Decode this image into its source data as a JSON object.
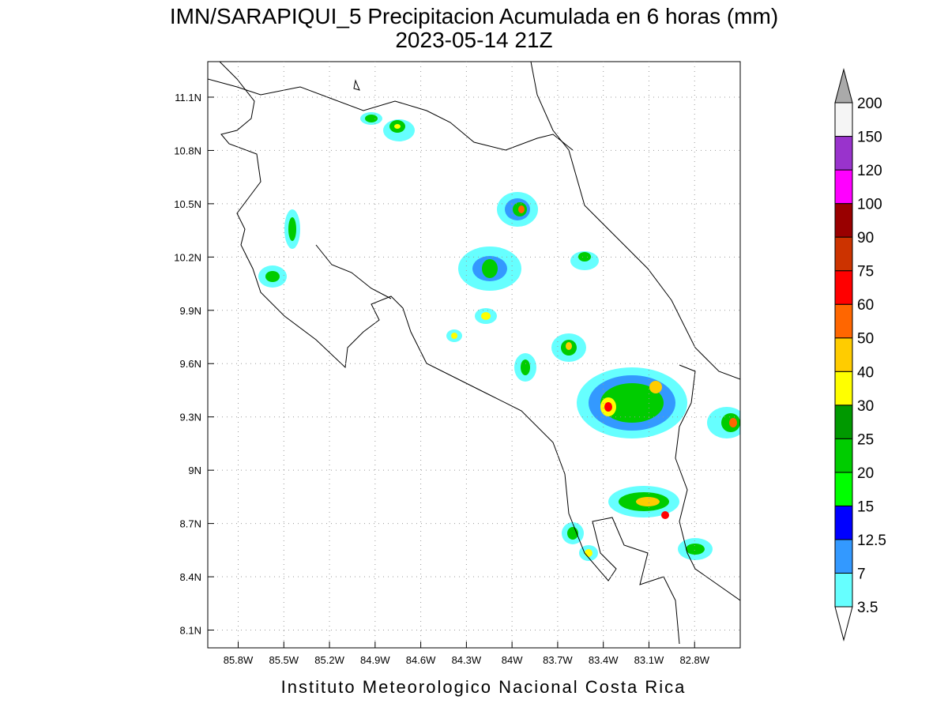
{
  "title": "IMN/SARAPIQUI_5 Precipitacion Acumulada en 6 horas (mm)",
  "subtitle": "2023-05-14 21Z",
  "footer": "Instituto Meteorologico Nacional Costa Rica",
  "map": {
    "xlim": [
      -86.0,
      -82.5
    ],
    "ylim": [
      8.0,
      11.3
    ],
    "grid": true,
    "xticks": [
      {
        "value": -85.8,
        "label": "85.8W"
      },
      {
        "value": -85.5,
        "label": "85.5W"
      },
      {
        "value": -85.2,
        "label": "85.2W"
      },
      {
        "value": -84.9,
        "label": "84.9W"
      },
      {
        "value": -84.6,
        "label": "84.6W"
      },
      {
        "value": -84.3,
        "label": "84.3W"
      },
      {
        "value": -84.0,
        "label": "84W"
      },
      {
        "value": -83.7,
        "label": "83.7W"
      },
      {
        "value": -83.4,
        "label": "83.4W"
      },
      {
        "value": -83.1,
        "label": "83.1W"
      },
      {
        "value": -82.8,
        "label": "82.8W"
      }
    ],
    "yticks": [
      {
        "value": 8.1,
        "label": "8.1N"
      },
      {
        "value": 8.4,
        "label": "8.4N"
      },
      {
        "value": 8.7,
        "label": "8.7N"
      },
      {
        "value": 9.0,
        "label": "9N"
      },
      {
        "value": 9.3,
        "label": "9.3N"
      },
      {
        "value": 9.6,
        "label": "9.6N"
      },
      {
        "value": 9.9,
        "label": "9.9N"
      },
      {
        "value": 10.2,
        "label": "10.2N"
      },
      {
        "value": 10.5,
        "label": "10.5N"
      },
      {
        "value": 10.8,
        "label": "10.8N"
      },
      {
        "value": 11.1,
        "label": "11.1N"
      }
    ]
  },
  "colorbar": {
    "levels": [
      3.5,
      7,
      12.5,
      15,
      20,
      25,
      30,
      40,
      50,
      60,
      75,
      90,
      100,
      120,
      150,
      200
    ],
    "colors": [
      "#66ffff",
      "#3399ff",
      "#0000ff",
      "#00ff00",
      "#00cc00",
      "#009900",
      "#ffff00",
      "#ffcc00",
      "#ff6600",
      "#ff0000",
      "#cc3300",
      "#990000",
      "#ff00ff",
      "#9933cc",
      "#f5f5f5"
    ],
    "under_color": "#ffffff",
    "over_color": "#aaaaaa"
  }
}
